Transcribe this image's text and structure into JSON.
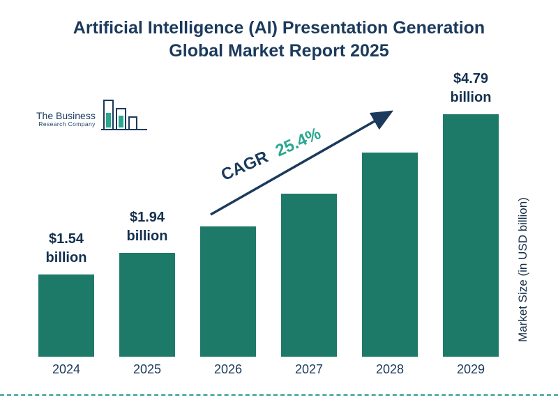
{
  "title": {
    "line1": "Artificial Intelligence (AI) Presentation Generation",
    "line2": "Global Market Report 2025"
  },
  "logo": {
    "line1": "The Business",
    "line2": "Research Company"
  },
  "cagr": {
    "label": "CAGR",
    "value": "25.4%"
  },
  "ylabel": "Market Size (in USD billion)",
  "colors": {
    "bar": "#1e7a68",
    "title_navy": "#1b3a5c",
    "cagr_teal": "#2aa78e",
    "dashed_line": "#2a9d8f"
  },
  "chart_data": {
    "type": "bar",
    "categories": [
      "2024",
      "2025",
      "2026",
      "2027",
      "2028",
      "2029"
    ],
    "values": [
      1.54,
      1.94,
      2.43,
      3.05,
      3.82,
      4.79
    ],
    "title": "Artificial Intelligence (AI) Presentation Generation Global Market Report 2025",
    "xlabel": "",
    "ylabel": "Market Size (in USD billion)",
    "ylim": [
      0,
      5
    ],
    "grid": false,
    "legend": "none",
    "bar_labels": [
      {
        "category": "2024",
        "line1": "$1.54",
        "line2": "billion"
      },
      {
        "category": "2025",
        "line1": "$1.94",
        "line2": "billion"
      },
      {
        "category": "2029",
        "line1": "$4.79",
        "line2": "billion"
      }
    ],
    "annotation": "CAGR 25.4%"
  }
}
